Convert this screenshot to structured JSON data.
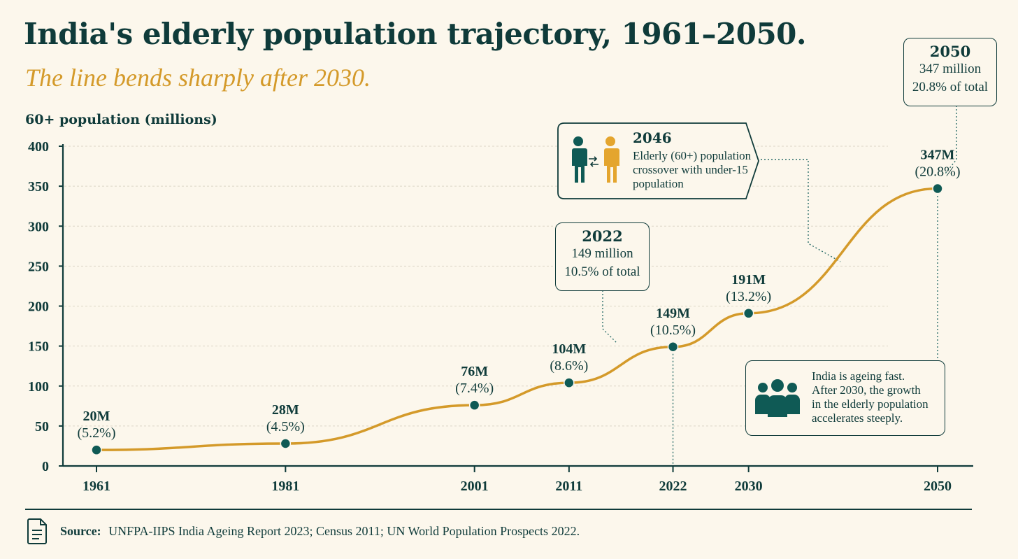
{
  "title": "India's elderly population trajectory, 1961–2050.",
  "subtitle": "The line bends sharply after 2030.",
  "colors": {
    "ink": "#0f3b3a",
    "accent": "#d49a2a",
    "background": "#fcf7ec",
    "grid": "#dcd6c6"
  },
  "chart_data": {
    "type": "line",
    "ylabel": "60+ population (millions)",
    "xlabel": "",
    "ylim": [
      0,
      400
    ],
    "yticks": [
      0,
      50,
      100,
      150,
      200,
      250,
      300,
      350,
      400
    ],
    "grid": true,
    "x": [
      1961,
      1981,
      2001,
      2011,
      2022,
      2030,
      2050
    ],
    "x_labels": [
      "1961",
      "1981",
      "2001",
      "2011",
      "2022",
      "2030",
      "2050"
    ],
    "y": [
      20,
      28,
      76,
      104,
      149,
      191,
      347
    ],
    "point_labels": [
      {
        "value": "20M",
        "share": "(5.2%)"
      },
      {
        "value": "28M",
        "share": "(4.5%)"
      },
      {
        "value": "76M",
        "share": "(7.4%)"
      },
      {
        "value": "104M",
        "share": "(8.6%)"
      },
      {
        "value": "149M",
        "share": "(10.5%)"
      },
      {
        "value": "191M",
        "share": "(13.2%)"
      },
      {
        "value": "347M",
        "share": "(20.8%)"
      }
    ]
  },
  "callouts": {
    "y2022": {
      "year": "2022",
      "line1": "149 million",
      "line2": "10.5% of total"
    },
    "y2050": {
      "year": "2050",
      "line1": "347 million",
      "line2": "20.8% of total"
    },
    "crossover": {
      "year": "2046",
      "line1": "Elderly (60+) population",
      "line2": "crossover with under-15",
      "line3": "population",
      "icon": "people-crossover-icon"
    },
    "note": {
      "line1": "India is ageing fast.",
      "line2": "After 2030, the growth",
      "line3": "in the elderly population",
      "line4": "accelerates steeply.",
      "icon": "group-people-icon"
    }
  },
  "source": {
    "label": "Source:",
    "text": "UNFPA-IIPS India Ageing Report 2023; Census 2011; UN World Population Prospects 2022.",
    "icon": "document-icon"
  }
}
